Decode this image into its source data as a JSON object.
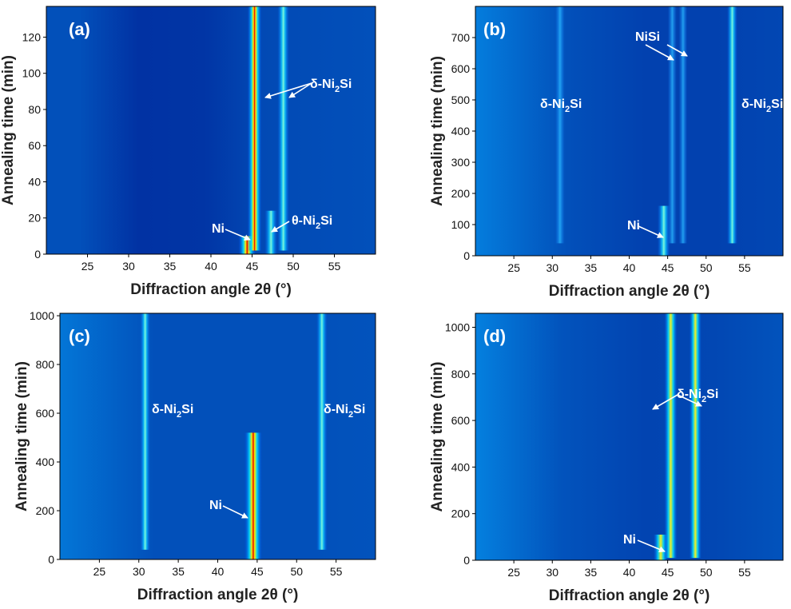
{
  "chart_data": [
    {
      "panel_label": "(a)",
      "type": "heatmap",
      "xlabel": "Diffraction angle 2θ (°)",
      "ylabel": "Annealing time (min)",
      "xlim": [
        20,
        60
      ],
      "ylim": [
        0,
        137
      ],
      "xticks": [
        25,
        30,
        35,
        40,
        45,
        50,
        55
      ],
      "yticks": [
        0,
        20,
        40,
        60,
        80,
        100,
        120
      ],
      "lines": [
        {
          "x": 44.4,
          "t_start": 0,
          "t_end": 10,
          "intensity": 1.0
        },
        {
          "x": 45.3,
          "t_start": 2,
          "t_end": 137,
          "intensity": 1.0
        },
        {
          "x": 47.3,
          "t_start": 0,
          "t_end": 24,
          "intensity": 0.55
        },
        {
          "x": 48.8,
          "t_start": 2,
          "t_end": 137,
          "intensity": 0.65
        }
      ],
      "annotations": [
        {
          "text": "δ-Ni2Si",
          "sub": true
        },
        {
          "text": "Ni",
          "sub": false
        },
        {
          "text": "θ-Ni2Si",
          "sub": true
        }
      ]
    },
    {
      "panel_label": "(b)",
      "type": "heatmap",
      "xlabel": "Diffraction angle 2θ (°)",
      "ylabel": "Annealing time (min)",
      "xlim": [
        20,
        60
      ],
      "ylim": [
        0,
        800
      ],
      "xticks": [
        25,
        30,
        35,
        40,
        45,
        50,
        55
      ],
      "yticks": [
        0,
        100,
        200,
        300,
        400,
        500,
        600,
        700
      ],
      "lines": [
        {
          "x": 31.0,
          "t_start": 40,
          "t_end": 800,
          "intensity": 0.35
        },
        {
          "x": 44.5,
          "t_start": 0,
          "t_end": 160,
          "intensity": 0.55
        },
        {
          "x": 45.6,
          "t_start": 40,
          "t_end": 800,
          "intensity": 0.3
        },
        {
          "x": 47.0,
          "t_start": 40,
          "t_end": 800,
          "intensity": 0.25
        },
        {
          "x": 53.4,
          "t_start": 40,
          "t_end": 800,
          "intensity": 0.5
        }
      ],
      "annotations": [
        {
          "text": "NiSi",
          "sub": false
        },
        {
          "text": "δ-Ni2Si",
          "sub": true
        },
        {
          "text": "δ-Ni2Si",
          "sub": true
        },
        {
          "text": "Ni",
          "sub": false
        }
      ]
    },
    {
      "panel_label": "(c)",
      "type": "heatmap",
      "xlabel": "Diffraction angle 2θ (°)",
      "ylabel": "Annealing time (min)",
      "xlim": [
        20,
        60
      ],
      "ylim": [
        0,
        1010
      ],
      "xticks": [
        25,
        30,
        35,
        40,
        45,
        50,
        55
      ],
      "yticks": [
        0,
        200,
        400,
        600,
        800,
        1000
      ],
      "lines": [
        {
          "x": 30.8,
          "t_start": 40,
          "t_end": 1010,
          "intensity": 0.45
        },
        {
          "x": 44.5,
          "t_start": 0,
          "t_end": 520,
          "intensity": 1.0
        },
        {
          "x": 53.2,
          "t_start": 40,
          "t_end": 1010,
          "intensity": 0.55
        }
      ],
      "annotations": [
        {
          "text": "δ-Ni2Si",
          "sub": true
        },
        {
          "text": "δ-Ni2Si",
          "sub": true
        },
        {
          "text": "Ni",
          "sub": false
        }
      ]
    },
    {
      "panel_label": "(d)",
      "type": "heatmap",
      "xlabel": "Diffraction angle 2θ (°)",
      "ylabel": "Annealing time (min)",
      "xlim": [
        20,
        60
      ],
      "ylim": [
        0,
        1060
      ],
      "xticks": [
        25,
        30,
        35,
        40,
        45,
        50,
        55
      ],
      "yticks": [
        0,
        200,
        400,
        600,
        800,
        1000
      ],
      "lines": [
        {
          "x": 44.1,
          "t_start": 0,
          "t_end": 110,
          "intensity": 0.7
        },
        {
          "x": 45.4,
          "t_start": 10,
          "t_end": 1060,
          "intensity": 0.8
        },
        {
          "x": 48.6,
          "t_start": 10,
          "t_end": 1060,
          "intensity": 0.7
        }
      ],
      "annotations": [
        {
          "text": "δ-Ni2Si",
          "sub": true
        },
        {
          "text": "Ni",
          "sub": false
        }
      ]
    }
  ]
}
